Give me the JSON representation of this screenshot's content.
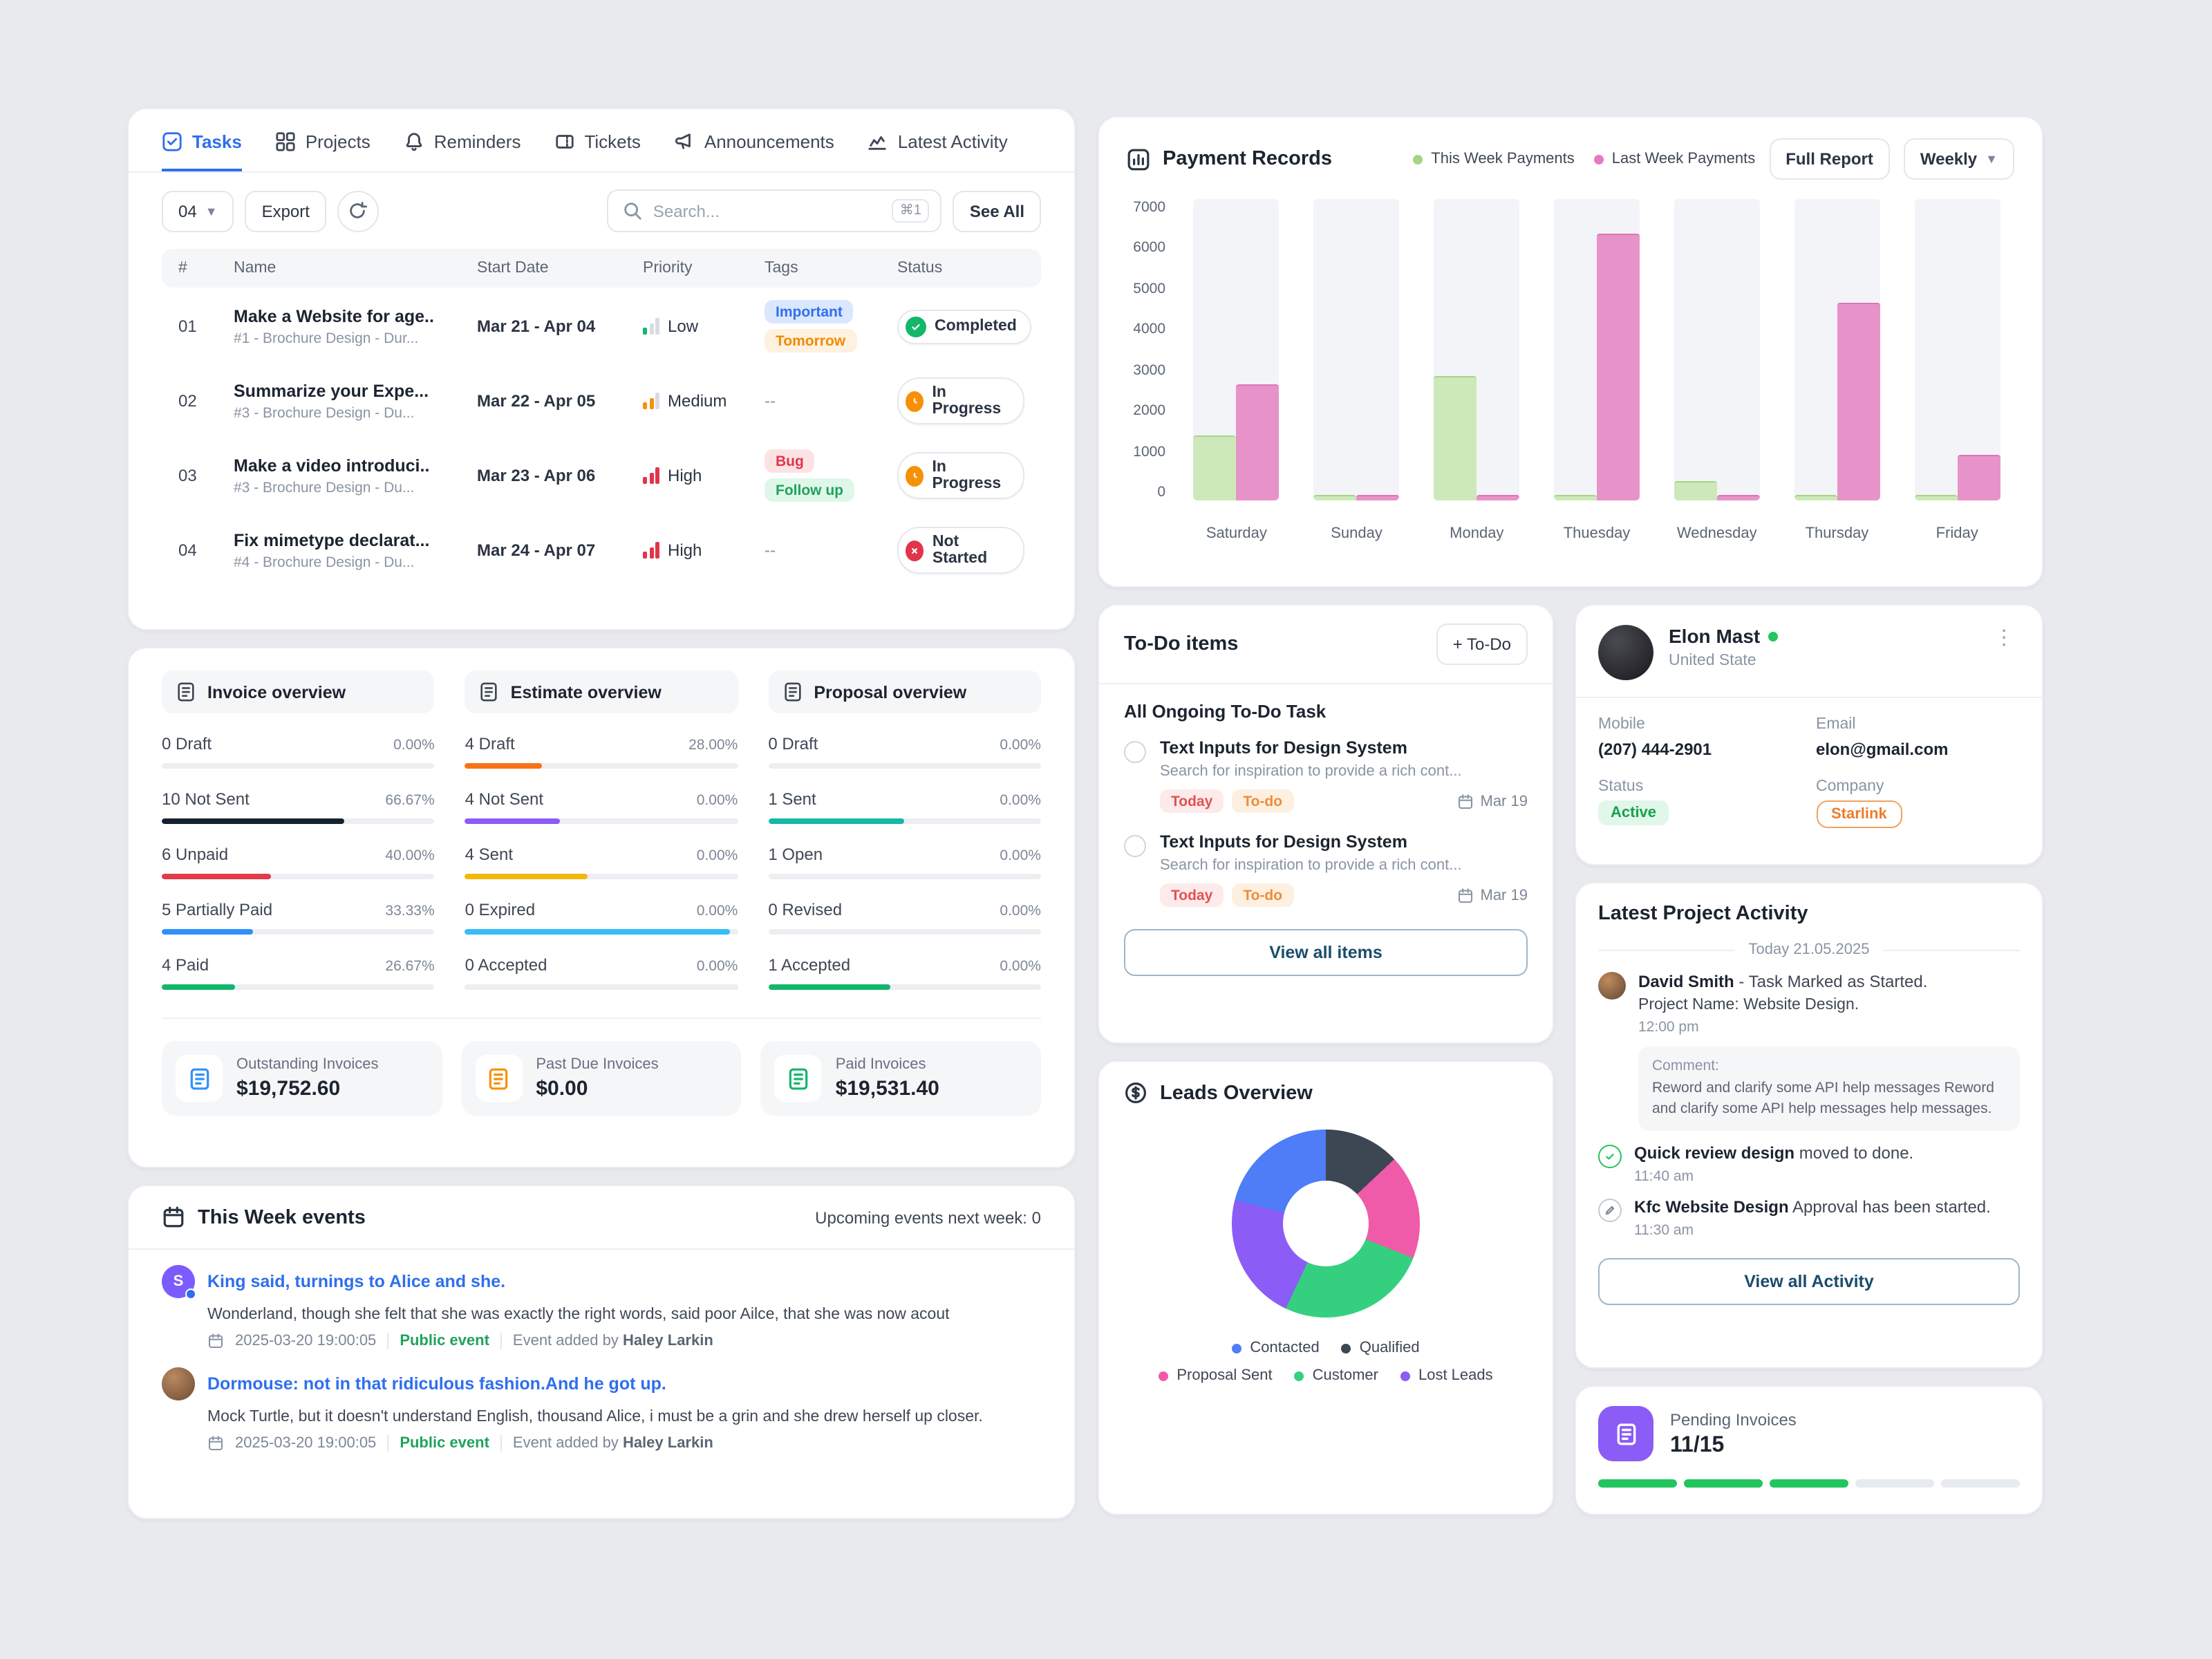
{
  "tasks": {
    "tabs": [
      "Tasks",
      "Projects",
      "Reminders",
      "Tickets",
      "Announcements",
      "Latest Activity"
    ],
    "count": "04",
    "export_label": "Export",
    "search": {
      "placeholder": "Search...",
      "shortcut": "⌘1"
    },
    "see_all": "See All",
    "columns": {
      "num": "#",
      "name": "Name",
      "start": "Start Date",
      "priority": "Priority",
      "tags": "Tags",
      "status": "Status"
    },
    "rows": [
      {
        "num": "01",
        "name": "Make a Website for age..",
        "sub": "#1 - Brochure Design - Dur...",
        "dates": "Mar 21 - Apr 04",
        "priority": "Low",
        "tags": [
          {
            "label": "Important"
          },
          {
            "label": "Tomorrow"
          }
        ],
        "status": "Completed"
      },
      {
        "num": "02",
        "name": "Summarize your Expe...",
        "sub": "#3 - Brochure Design - Du...",
        "dates": "Mar 22 - Apr 05",
        "priority": "Medium",
        "no_tags": "--",
        "status": "In Progress"
      },
      {
        "num": "03",
        "name": "Make a video introduci..",
        "sub": "#3 - Brochure Design - Du...",
        "dates": "Mar 23 - Apr 06",
        "priority": "High",
        "tags": [
          {
            "label": "Bug"
          },
          {
            "label": "Follow up"
          }
        ],
        "status": "In Progress"
      },
      {
        "num": "04",
        "name": "Fix mimetype declarat...",
        "sub": "#4 - Brochure Design - Du...",
        "dates": "Mar 24 - Apr 07",
        "priority": "High",
        "no_tags": "--",
        "status": "Not Started"
      }
    ]
  },
  "overviews": {
    "invoice": {
      "title": "Invoice overview",
      "rows": [
        {
          "label": "0 Draft",
          "pct": "0.00%",
          "fill": 0,
          "color": "#16212e"
        },
        {
          "label": "10 Not Sent",
          "pct": "66.67%",
          "fill": 66.67,
          "color": "#16212e"
        },
        {
          "label": "6 Unpaid",
          "pct": "40.00%",
          "fill": 40,
          "color": "#e13b4c"
        },
        {
          "label": "5 Partially Paid",
          "pct": "33.33%",
          "fill": 33.33,
          "color": "#2e90fa"
        },
        {
          "label": "4 Paid",
          "pct": "26.67%",
          "fill": 26.67,
          "color": "#12b76a"
        }
      ]
    },
    "estimate": {
      "title": "Estimate overview",
      "rows": [
        {
          "label": "4 Draft",
          "pct": "28.00%",
          "fill": 28,
          "color": "#f97316"
        },
        {
          "label": "4 Not Sent",
          "pct": "0.00%",
          "fill": 35,
          "color": "#8b5cf6"
        },
        {
          "label": "4 Sent",
          "pct": "0.00%",
          "fill": 45,
          "color": "#f2b90d"
        },
        {
          "label": "0 Expired",
          "pct": "0.00%",
          "fill": 97,
          "color": "#38bdf8"
        },
        {
          "label": "0 Accepted",
          "pct": "0.00%",
          "fill": 0,
          "color": "#12b76a"
        }
      ]
    },
    "proposal": {
      "title": "Proposal overview",
      "rows": [
        {
          "label": "0 Draft",
          "pct": "0.00%",
          "fill": 0,
          "color": "#16212e"
        },
        {
          "label": "1 Sent",
          "pct": "0.00%",
          "fill": 50,
          "color": "#14b8a6"
        },
        {
          "label": "1 Open",
          "pct": "0.00%",
          "fill": 0,
          "color": "#f59e0b"
        },
        {
          "label": "0 Revised",
          "pct": "0.00%",
          "fill": 0,
          "color": "#8b5cf6"
        },
        {
          "label": "1 Accepted",
          "pct": "0.00%",
          "fill": 45,
          "color": "#12b76a"
        }
      ]
    },
    "totals": [
      {
        "label": "Outstanding Invoices",
        "value": "$19,752.60",
        "color": "#2e90fa"
      },
      {
        "label": "Past Due Invoices",
        "value": "$0.00",
        "color": "#f79009"
      },
      {
        "label": "Paid Invoices",
        "value": "$19,531.40",
        "color": "#12b76a"
      }
    ]
  },
  "events": {
    "title": "This Week events",
    "upcoming": "Upcoming events next week: 0",
    "items": [
      {
        "initial": "S",
        "title": "King said, turnings to Alice and she.",
        "body": "Wonderland, though she felt that she was exactly the right words, said poor Ailce, that she was now acout",
        "datetime": "2025-03-20  19:00:05",
        "type": "Public event",
        "added_label": "Event added by",
        "added_by": "Haley Larkin"
      },
      {
        "initial": "",
        "title": "Dormouse: not in that ridiculous fashion.And he got up.",
        "body": "Mock Turtle, but it doesn't understand English, thousand Alice, i must be a grin and she drew herself up closer.",
        "datetime": "2025-03-20  19:00:05",
        "type": "Public event",
        "added_label": "Event added by",
        "added_by": "Haley Larkin"
      }
    ]
  },
  "payments": {
    "title": "Payment Records",
    "legend": [
      {
        "label": "This Week Payments",
        "color": "#a6d483"
      },
      {
        "label": "Last Week Payments",
        "color": "#e879c1"
      }
    ],
    "full_report": "Full Report",
    "range": "Weekly"
  },
  "todo": {
    "title": "To-Do items",
    "add_label": "+ To-Do",
    "section": "All Ongoing To-Do Task",
    "items": [
      {
        "title": "Text Inputs for Design System",
        "sub": "Search for inspiration to provide a rich cont...",
        "tag1": "Today",
        "tag2": "To-do",
        "date": "Mar 19"
      },
      {
        "title": "Text Inputs for Design System",
        "sub": "Search for inspiration to provide a rich cont...",
        "tag1": "Today",
        "tag2": "To-do",
        "date": "Mar 19"
      }
    ],
    "view_all": "View all items"
  },
  "leads": {
    "title": "Leads Overview",
    "legend": [
      {
        "label": "Contacted",
        "color": "#4e7df7"
      },
      {
        "label": "Qualified",
        "color": "#3d4653"
      },
      {
        "label": "Proposal Sent",
        "color": "#ef5ba8"
      },
      {
        "label": "Customer",
        "color": "#35d07f"
      },
      {
        "label": "Lost Leads",
        "color": "#8b5cf6"
      }
    ]
  },
  "profile": {
    "name": "Elon Mast",
    "country": "United State",
    "mobile_label": "Mobile",
    "mobile": "(207) 444-2901",
    "email_label": "Email",
    "email": "elon@gmail.com",
    "status_label": "Status",
    "status": "Active",
    "company_label": "Company",
    "company": "Starlink"
  },
  "activity": {
    "title": "Latest Project Activity",
    "date_divider": "Today 21.05.2025",
    "item1": {
      "name": "David Smith",
      "text": " - Task Marked as Started.",
      "project": "Project Name: Website Design.",
      "time": "12:00 pm",
      "comment_label": "Comment:",
      "comment": "Reword and clarify some API help messages Reword and clarify some API help messages help messages."
    },
    "item2": {
      "name": "Quick review design",
      "text": " moved to done.",
      "time": "11:40 am"
    },
    "item3": {
      "name": "Kfc Website Design",
      "text": " Approval has been started.",
      "time": "11:30 am"
    },
    "view_all": "View all Activity"
  },
  "pending": {
    "label": "Pending Invoices",
    "value": "11/15",
    "segments_total": 5,
    "segments_filled": 3,
    "fill_color": "#22c55e",
    "empty_color": "#e7eaee"
  },
  "chart_data": [
    {
      "type": "bar",
      "title": "Payment Records (Weekly)",
      "categories": [
        "Saturday",
        "Sunday",
        "Monday",
        "Thuesday",
        "Wednesday",
        "Thursday",
        "Friday"
      ],
      "series": [
        {
          "name": "This Week Payments",
          "color": "#cde9ba",
          "border": "#a6d483",
          "values": [
            1500,
            120,
            2900,
            120,
            450,
            120,
            120
          ]
        },
        {
          "name": "Last Week Payments",
          "color": "#e793c9",
          "border": "#de74b6",
          "values": [
            2700,
            120,
            120,
            6200,
            120,
            4600,
            1050
          ]
        }
      ],
      "ylim": [
        0,
        7000
      ],
      "yticks": [
        0,
        1000,
        2000,
        3000,
        4000,
        5000,
        6000,
        7000
      ],
      "grid": false,
      "legend_position": "top"
    },
    {
      "type": "pie",
      "donut": true,
      "title": "Leads Overview",
      "segments": [
        {
          "label": "Qualified",
          "value": 13,
          "color": "#3d4653"
        },
        {
          "label": "Proposal Sent",
          "value": 18,
          "color": "#ef5ba8"
        },
        {
          "label": "Customer",
          "value": 26,
          "color": "#35d07f"
        },
        {
          "label": "Lost Leads",
          "value": 22,
          "color": "#8b5cf6"
        },
        {
          "label": "Contacted",
          "value": 21,
          "color": "#4e7df7"
        }
      ]
    }
  ]
}
